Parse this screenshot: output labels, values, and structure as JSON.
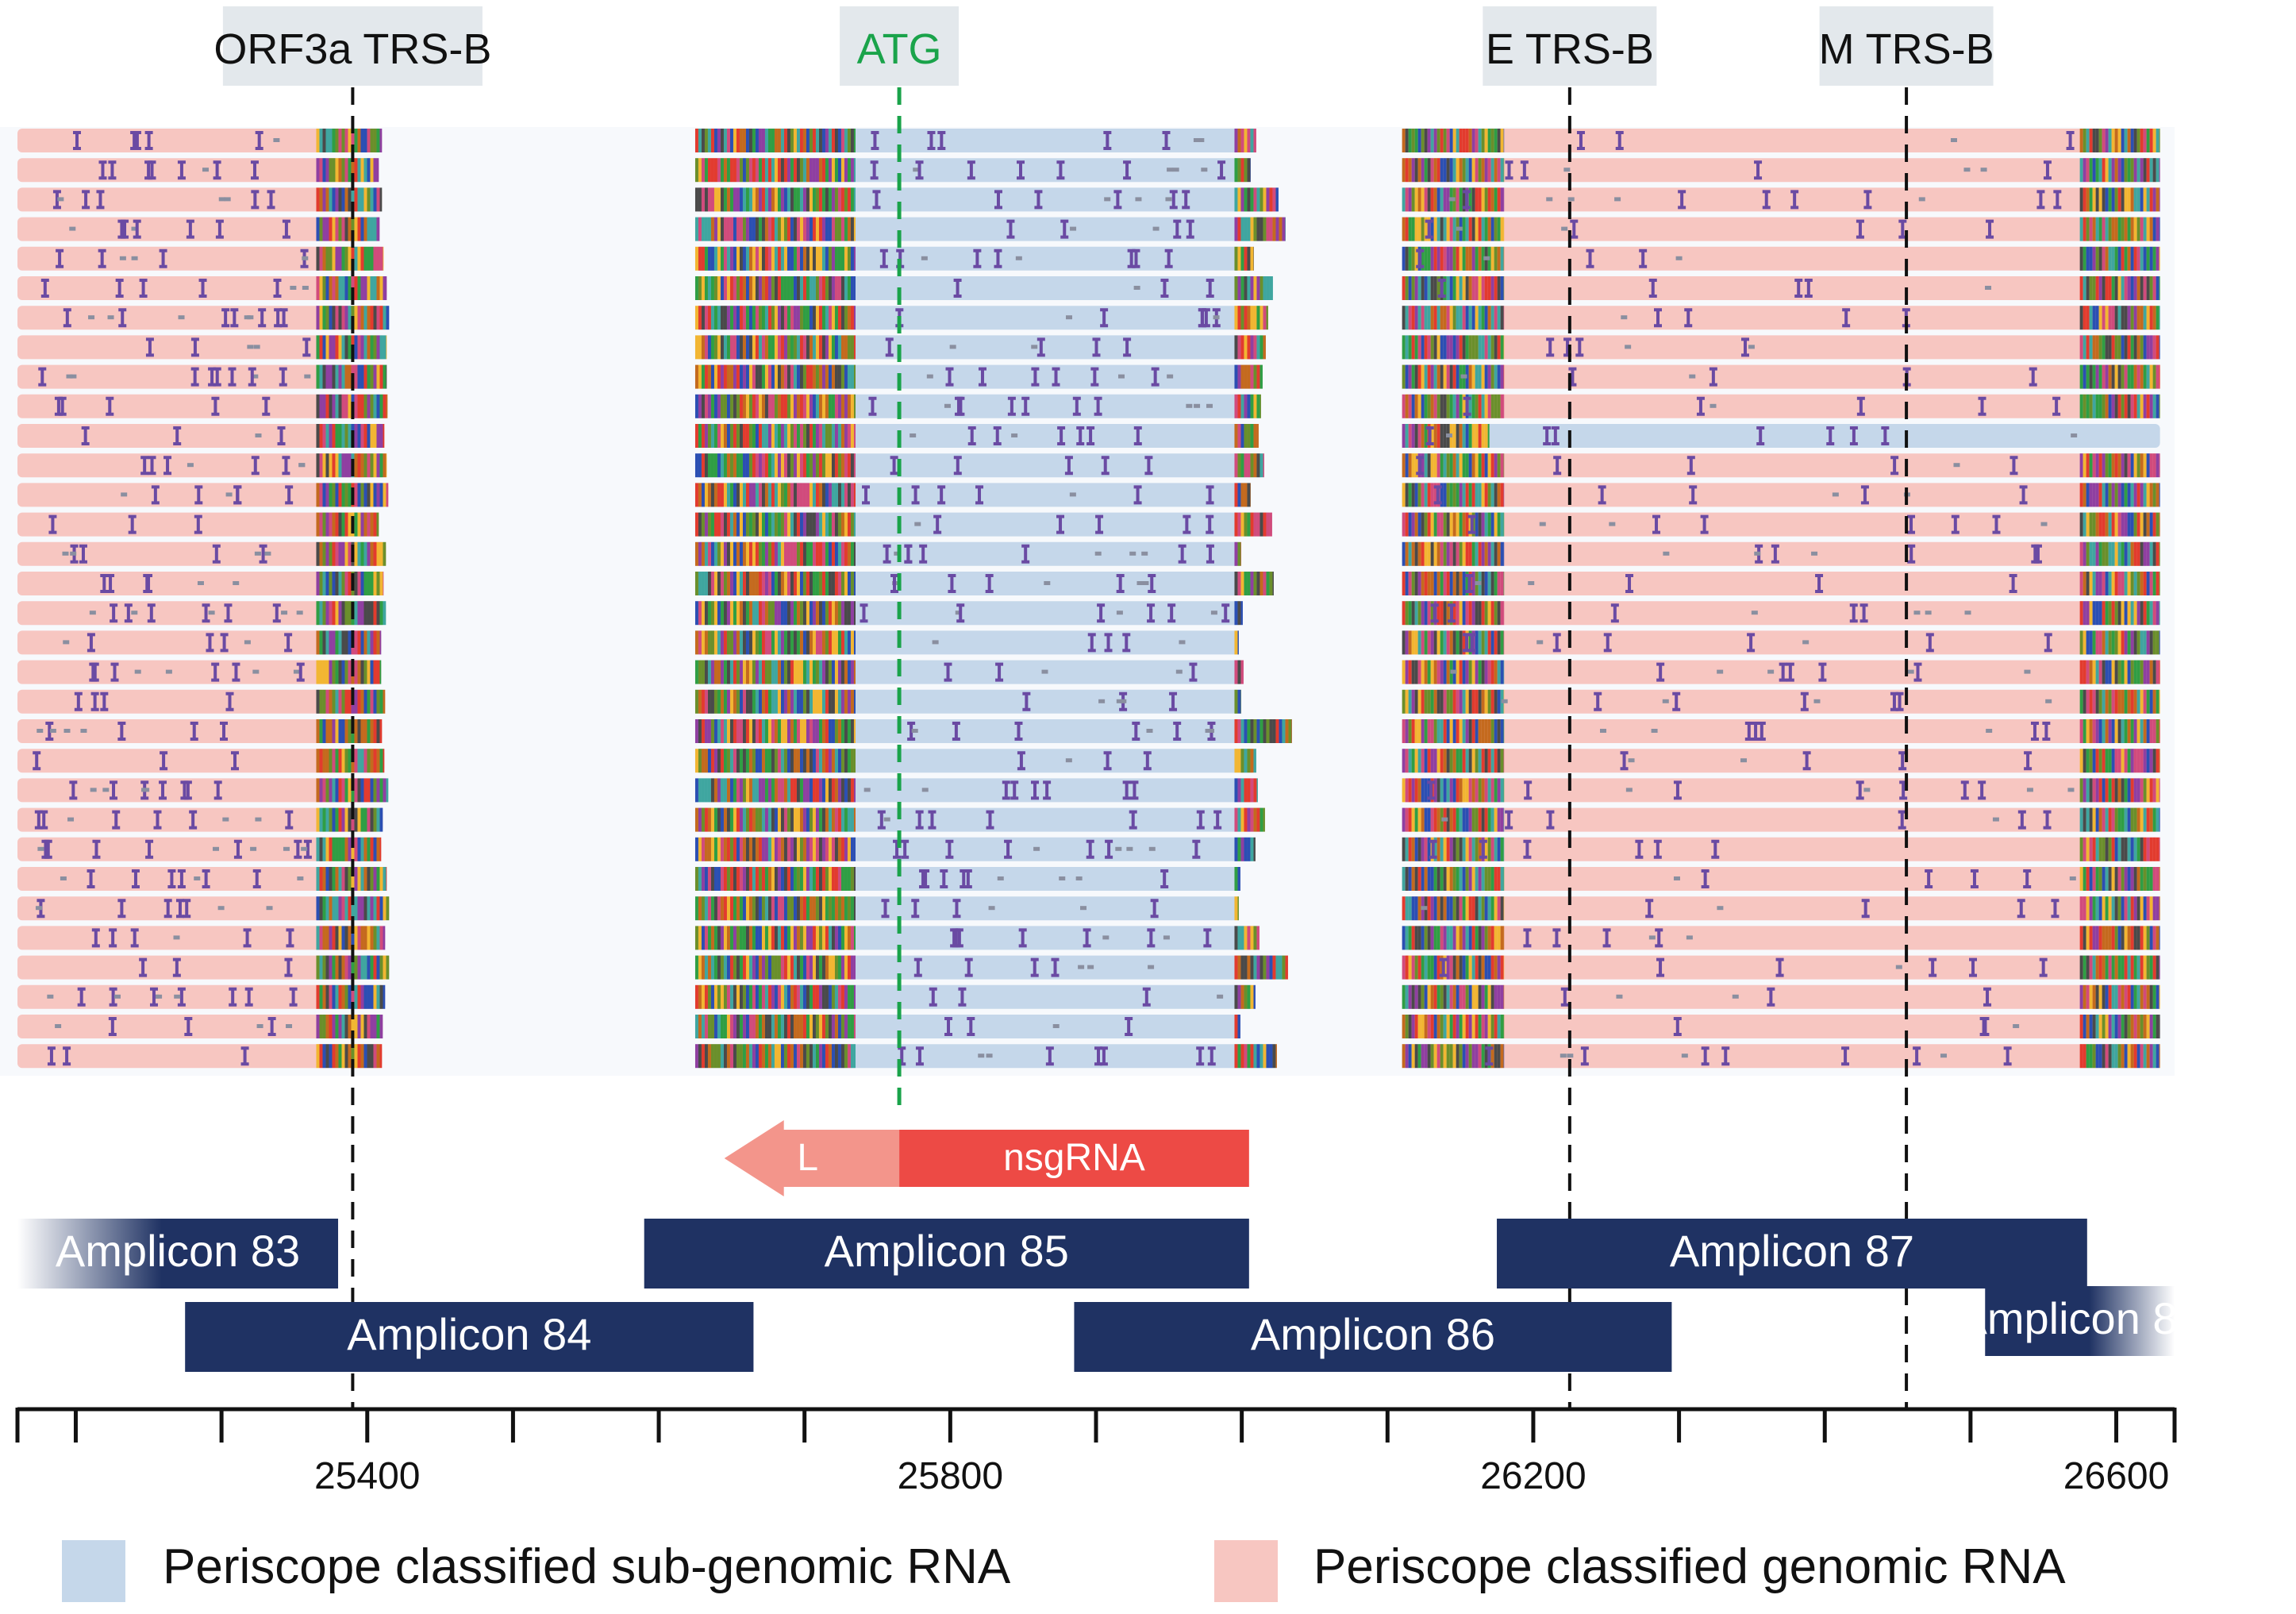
{
  "markers": [
    {
      "label": "ORF3a TRS-B",
      "position": 25390,
      "color": "#111111",
      "box": "#e3e8ec"
    },
    {
      "label": "ATG",
      "position": 25765,
      "color": "#1aa34a",
      "box": "#e3e8ec"
    },
    {
      "label": "E TRS-B",
      "position": 26225,
      "color": "#111111",
      "box": "#e3e8ec"
    },
    {
      "label": "M TRS-B",
      "position": 26456,
      "color": "#111111",
      "box": "#e3e8ec"
    }
  ],
  "axis": {
    "min": 25160,
    "max": 26640,
    "ticks": [
      25400,
      25800,
      26200,
      26600
    ],
    "tick_labels": [
      "25400",
      "25800",
      "26200",
      "26600"
    ]
  },
  "read_blocks": [
    {
      "start": 25160,
      "end": 25415,
      "rows": 32,
      "classification": "genomic"
    },
    {
      "start": 25625,
      "end": 26035,
      "rows": 32,
      "classification": "sub-genomic"
    },
    {
      "start": 26110,
      "end": 26630,
      "rows": 32,
      "classification": "genomic",
      "sgRNA_row_index": 10
    }
  ],
  "amplicons": [
    {
      "label": "Amplicon 83",
      "start": 25160,
      "end": 25380,
      "lane": 0,
      "faded_left": true
    },
    {
      "label": "Amplicon 84",
      "start": 25275,
      "end": 25665,
      "lane": 1
    },
    {
      "label": "Amplicon 85",
      "start": 25590,
      "end": 26005,
      "lane": 0
    },
    {
      "label": "Amplicon 86",
      "start": 25885,
      "end": 26295,
      "lane": 1
    },
    {
      "label": "Amplicon 87",
      "start": 26175,
      "end": 26580,
      "lane": 0
    },
    {
      "label": "Amplicon 88",
      "start": 26510,
      "end": 26640,
      "lane": 1,
      "faded_right": true
    }
  ],
  "nsgrna": {
    "leader_label": "L",
    "body_label": "nsgRNA",
    "start": 25645,
    "leader_end": 25765,
    "end": 26005,
    "leader_color": "#f3958b",
    "body_color": "#ed4a45"
  },
  "legend": [
    {
      "label": "Periscope classified sub-genomic RNA",
      "color": "#c5d7ea"
    },
    {
      "label": "Periscope classified genomic RNA",
      "color": "#f7c6c1"
    }
  ],
  "colors": {
    "amplicon": "#1f3263",
    "genomic_read": "#f7c6c1",
    "subgenomic_read": "#c5d7ea",
    "mismatch": "#6a4aa3",
    "read_area_bg": "#f7f9fc"
  }
}
